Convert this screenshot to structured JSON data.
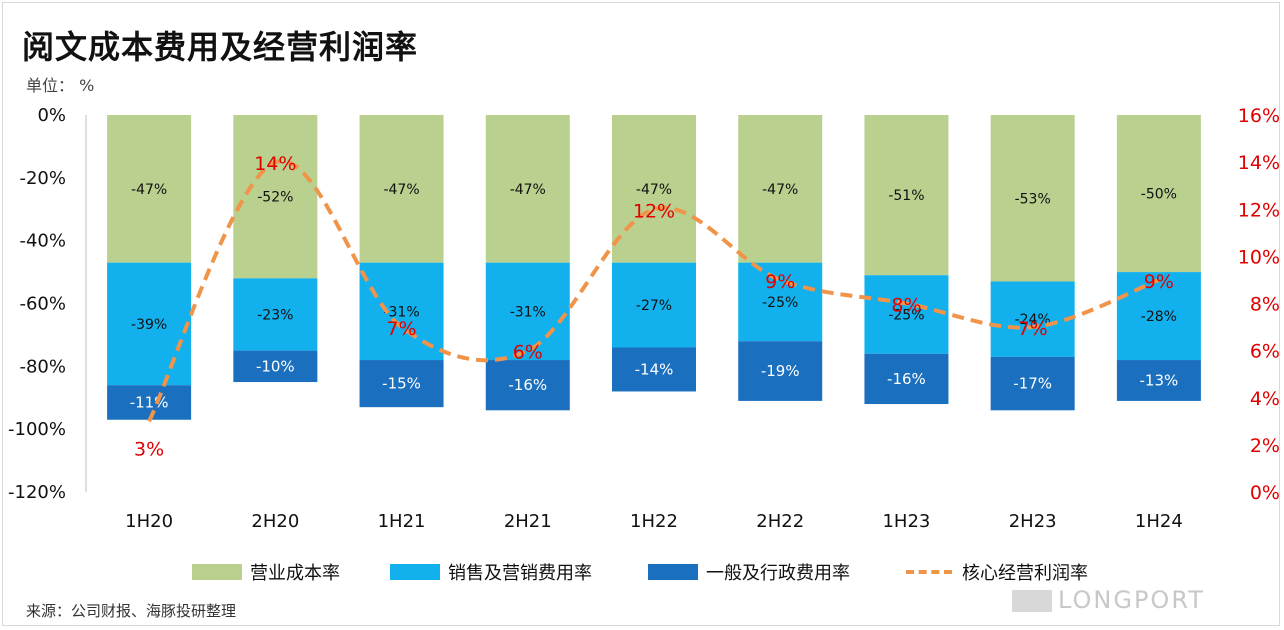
{
  "title": "阅文成本费用及经营利润率",
  "unit_label": "单位： %",
  "source": "来源：公司财报、海豚投研整理",
  "brand": "LONGPORT",
  "colors": {
    "cost": "#B9D08E",
    "selling": "#12B0EC",
    "admin": "#1A6FBF",
    "core_margin": "#F0944A",
    "margin_label": "#E00000",
    "axis_right": "#E00000"
  },
  "chart_data": {
    "type": "bar",
    "stacked": true,
    "categories": [
      "1H20",
      "2H20",
      "1H21",
      "2H21",
      "1H22",
      "2H22",
      "1H23",
      "2H23",
      "1H24"
    ],
    "y_left": {
      "lim": [
        -120,
        0
      ],
      "ticks": [
        "0%",
        "-20%",
        "-40%",
        "-60%",
        "-80%",
        "-100%",
        "-120%"
      ]
    },
    "y_right": {
      "lim": [
        0,
        16
      ],
      "ticks": [
        "16%",
        "14%",
        "12%",
        "10%",
        "8%",
        "6%",
        "4%",
        "2%",
        "0%"
      ]
    },
    "series": [
      {
        "name": "营业成本率",
        "axis": "left",
        "values": [
          -47,
          -52,
          -47,
          -47,
          -47,
          -47,
          -51,
          -53,
          -50
        ],
        "labels": [
          "-47%",
          "-52%",
          "-47%",
          "-47%",
          "-47%",
          "-47%",
          "-51%",
          "-53%",
          "-50%"
        ]
      },
      {
        "name": "销售及营销费用率",
        "axis": "left",
        "values": [
          -39,
          -23,
          -31,
          -31,
          -27,
          -25,
          -25,
          -24,
          -28
        ],
        "labels": [
          "-39%",
          "-23%",
          "-31%",
          "-31%",
          "-27%",
          "-25%",
          "-25%",
          "-24%",
          "-28%"
        ]
      },
      {
        "name": "一般及行政费用率",
        "axis": "left",
        "values": [
          -11,
          -10,
          -15,
          -16,
          -14,
          -19,
          -16,
          -17,
          -13
        ],
        "labels": [
          "-11%",
          "-10%",
          "-15%",
          "-16%",
          "-14%",
          "-19%",
          "-16%",
          "-17%",
          "-13%"
        ]
      },
      {
        "name": "核心经营利润率",
        "type": "line",
        "style": "dashed-smooth",
        "axis": "right",
        "values": [
          3,
          14,
          7,
          6,
          12,
          9,
          8,
          7,
          9
        ],
        "labels": [
          "3%",
          "14%",
          "7%",
          "6%",
          "12%",
          "9%",
          "8%",
          "7%",
          "9%"
        ]
      }
    ]
  }
}
